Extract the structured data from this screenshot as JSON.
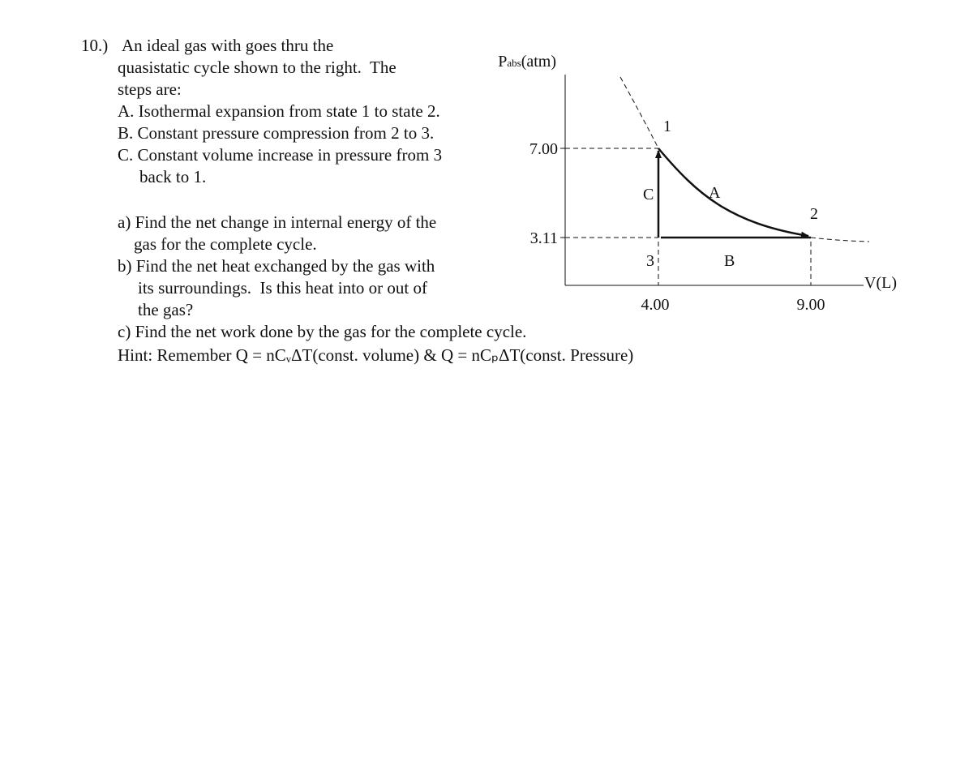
{
  "problem": {
    "number": "10.)",
    "intro": [
      "An ideal gas with goes thru the",
      "quasistatic cycle shown to the right.  The",
      "steps are:"
    ],
    "steps": [
      "A. Isothermal expansion from state 1 to state 2.",
      "B. Constant pressure compression from 2 to 3.",
      "C. Constant volume increase in pressure from 3",
      "back to 1."
    ],
    "questions": [
      "a) Find the net change in internal energy of the",
      "gas for the complete cycle.",
      "b) Find the net heat exchanged by the gas with",
      "its surroundings.  Is this heat into or out of",
      "the gas?",
      "c) Find the net work done by the gas for the complete cycle."
    ],
    "hint": "Hint: Remember Q = nCᵥΔT(const. volume) & Q = nCₚΔT(const. Pressure)"
  },
  "diagram": {
    "y_axis": {
      "symbol": "P",
      "subscript": "abs",
      "unit": "(atm)"
    },
    "x_axis": {
      "label": "V(L)"
    },
    "yticks": [
      "7.00",
      "3.11"
    ],
    "xticks": [
      "4.00",
      "9.00"
    ],
    "states": [
      "1",
      "2",
      "3"
    ],
    "processes": [
      "A",
      "B",
      "C"
    ]
  }
}
